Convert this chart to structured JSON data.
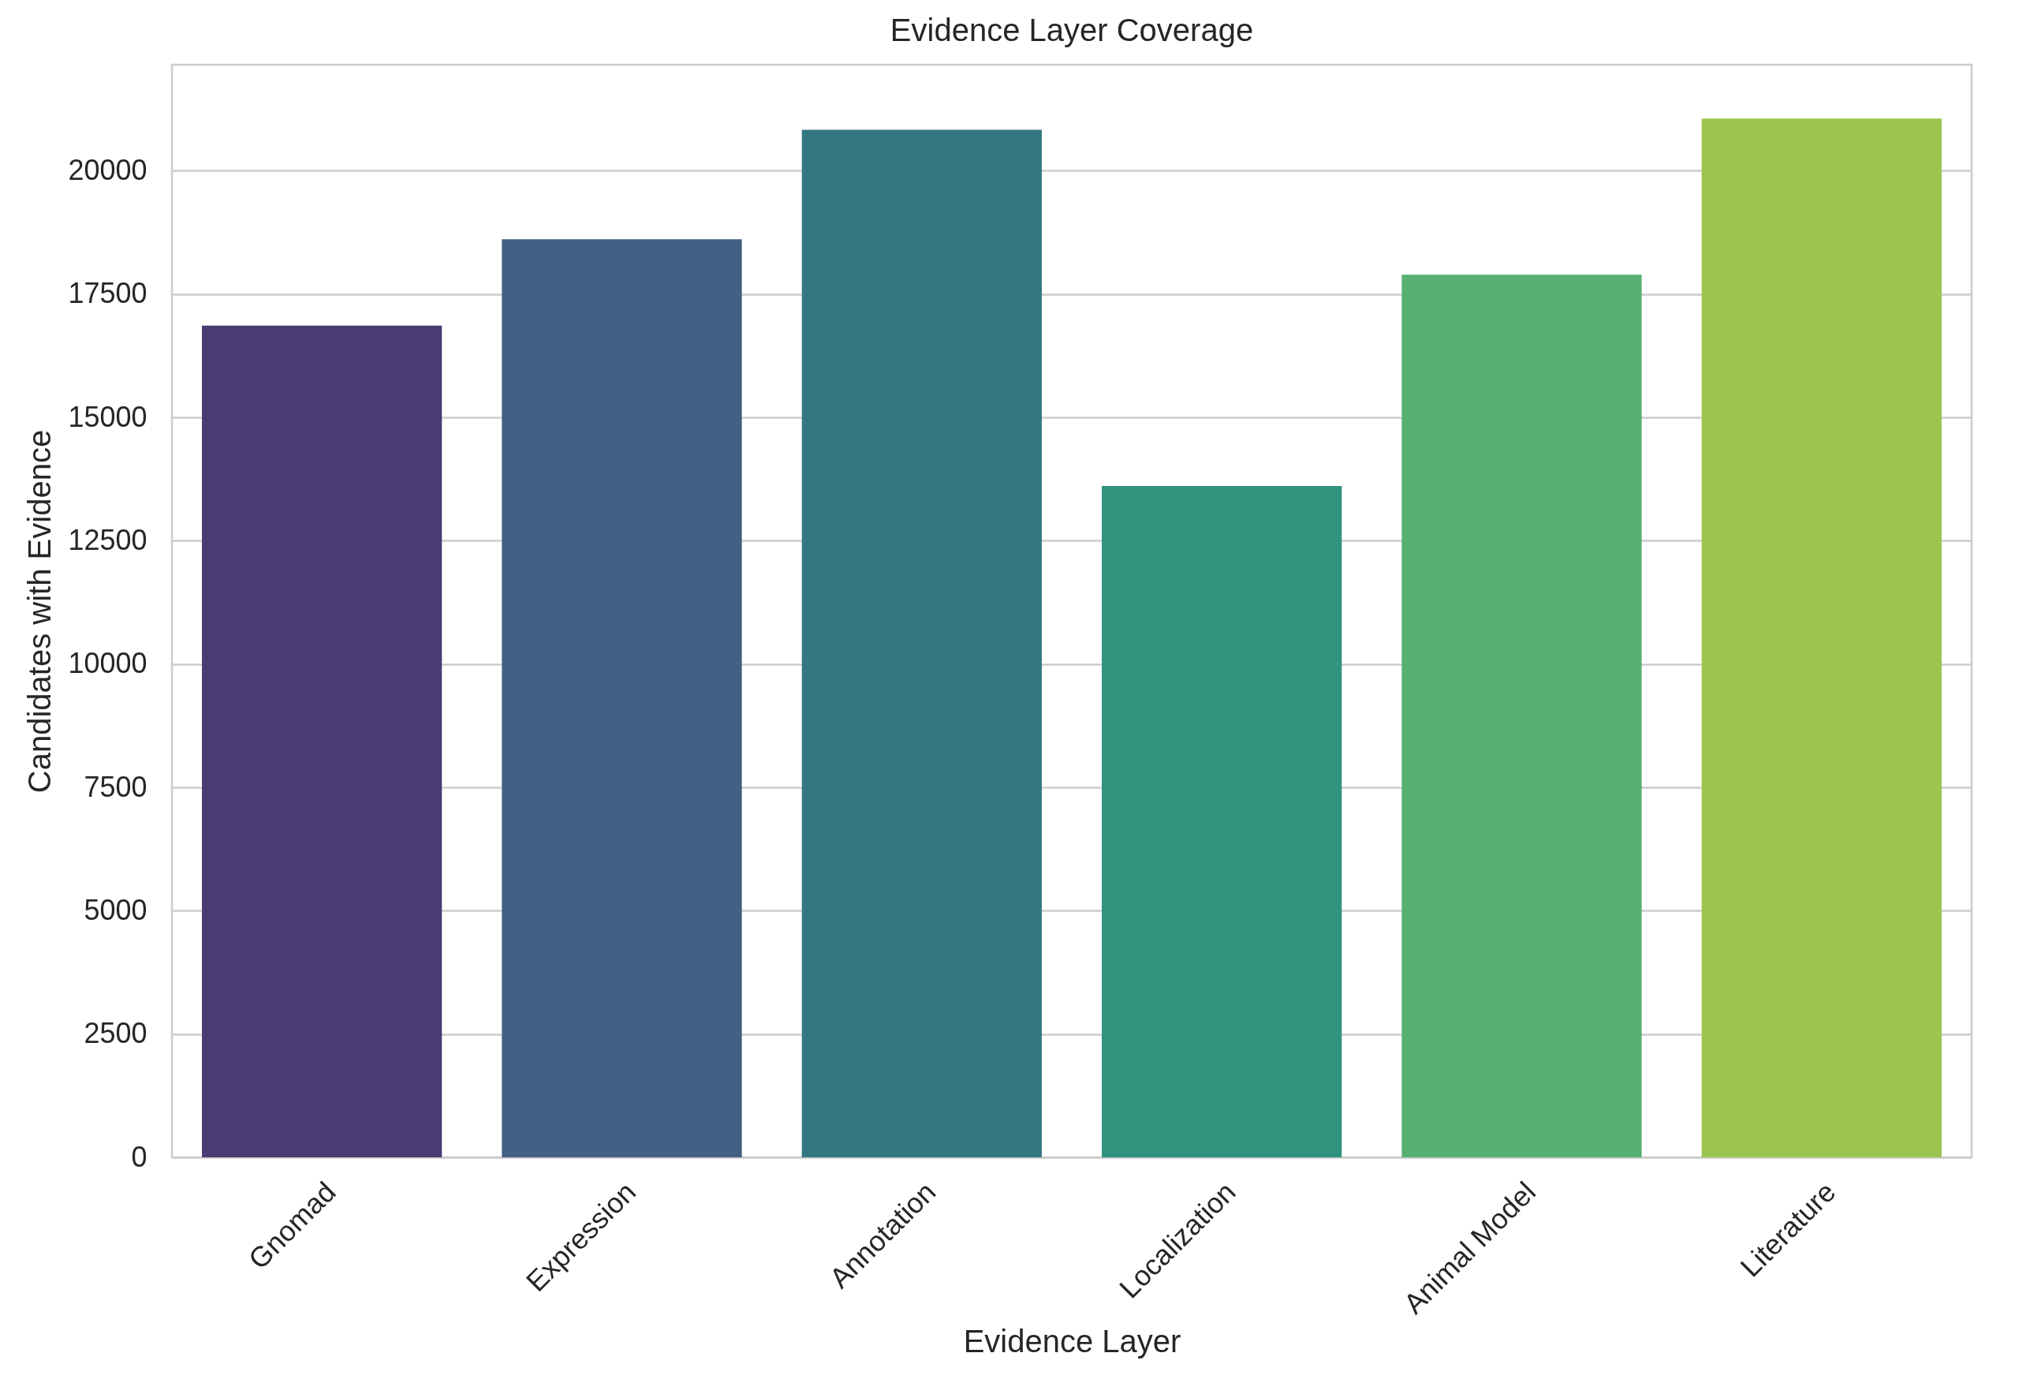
{
  "chart_data": {
    "type": "bar",
    "title": "Evidence Layer Coverage",
    "xlabel": "Evidence Layer",
    "ylabel": "Candidates with Evidence",
    "categories": [
      "Gnomad",
      "Expression",
      "Annotation",
      "Localization",
      "Animal Model",
      "Literature"
    ],
    "values": [
      16860,
      18610,
      20830,
      13610,
      17890,
      21060
    ],
    "colors": [
      "#4b3b73",
      "#425f84",
      "#357780",
      "#31927e",
      "#58b073",
      "#9bc54f"
    ],
    "ylim": [
      0,
      22150
    ],
    "yticks": [
      0,
      2500,
      5000,
      7500,
      10000,
      12500,
      15000,
      17500,
      20000
    ],
    "grid": "y"
  }
}
